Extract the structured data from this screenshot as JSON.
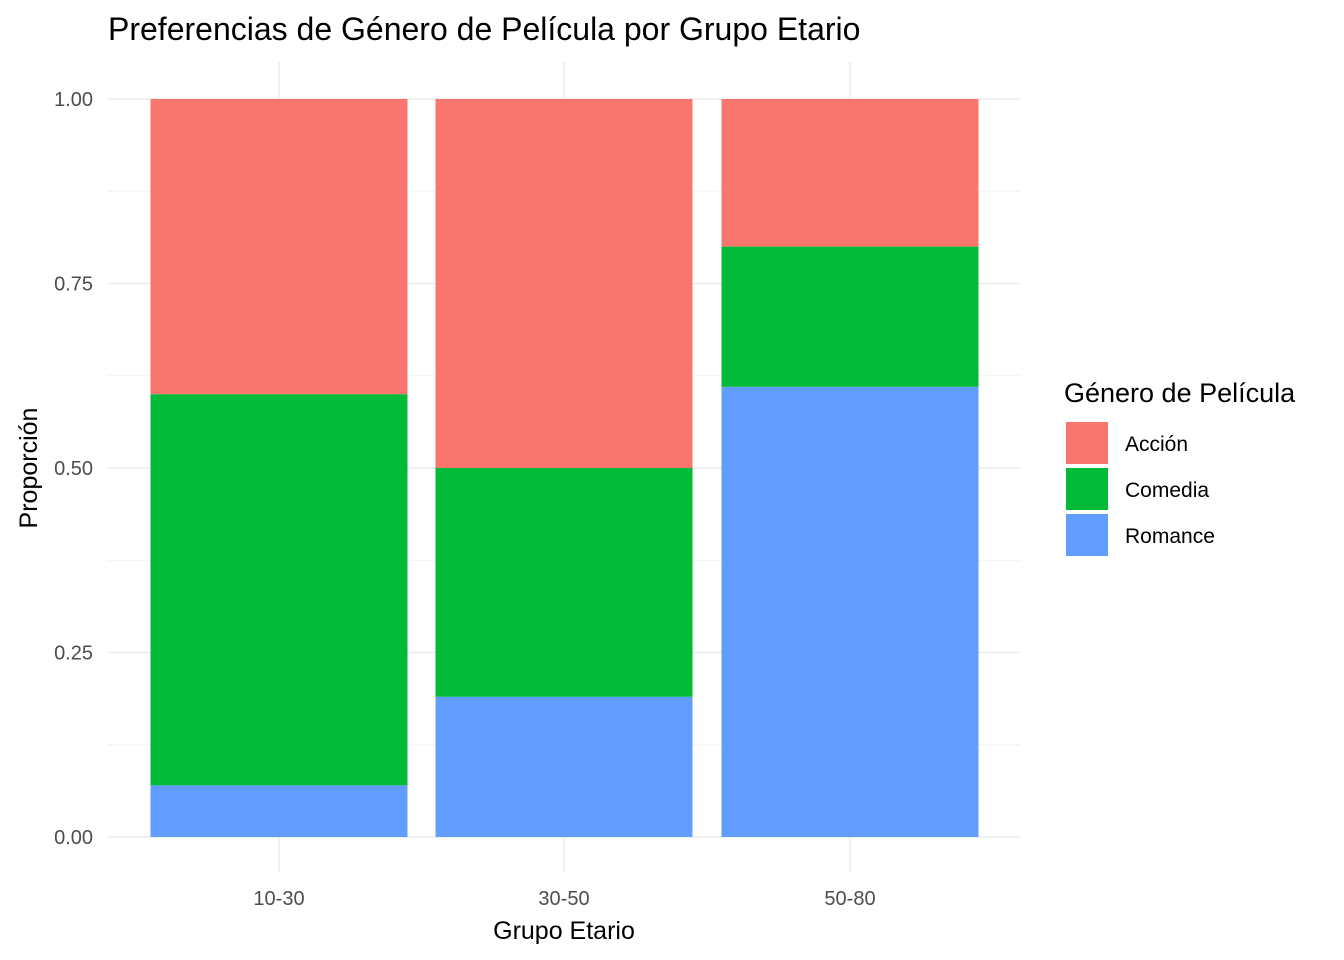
{
  "chart_data": {
    "type": "bar",
    "stacked": true,
    "position": "fill",
    "title": "Preferencias de Género de Película por Grupo Etario",
    "xlabel": "Grupo Etario",
    "ylabel": "Proporción",
    "categories": [
      "10-30",
      "30-50",
      "50-80"
    ],
    "ylim": [
      0,
      1
    ],
    "yticks": [
      "0.00",
      "0.25",
      "0.50",
      "0.75",
      "1.00"
    ],
    "grid": true,
    "legend": {
      "title": "Género de Película",
      "placement": "right"
    },
    "series": [
      {
        "name": "Acción",
        "color": "#F8766D",
        "values": [
          0.4,
          0.5,
          0.2
        ]
      },
      {
        "name": "Comedia",
        "color": "#00BA38",
        "values": [
          0.53,
          0.31,
          0.19
        ]
      },
      {
        "name": "Romance",
        "color": "#619CFF",
        "values": [
          0.07,
          0.19,
          0.61
        ]
      }
    ]
  }
}
